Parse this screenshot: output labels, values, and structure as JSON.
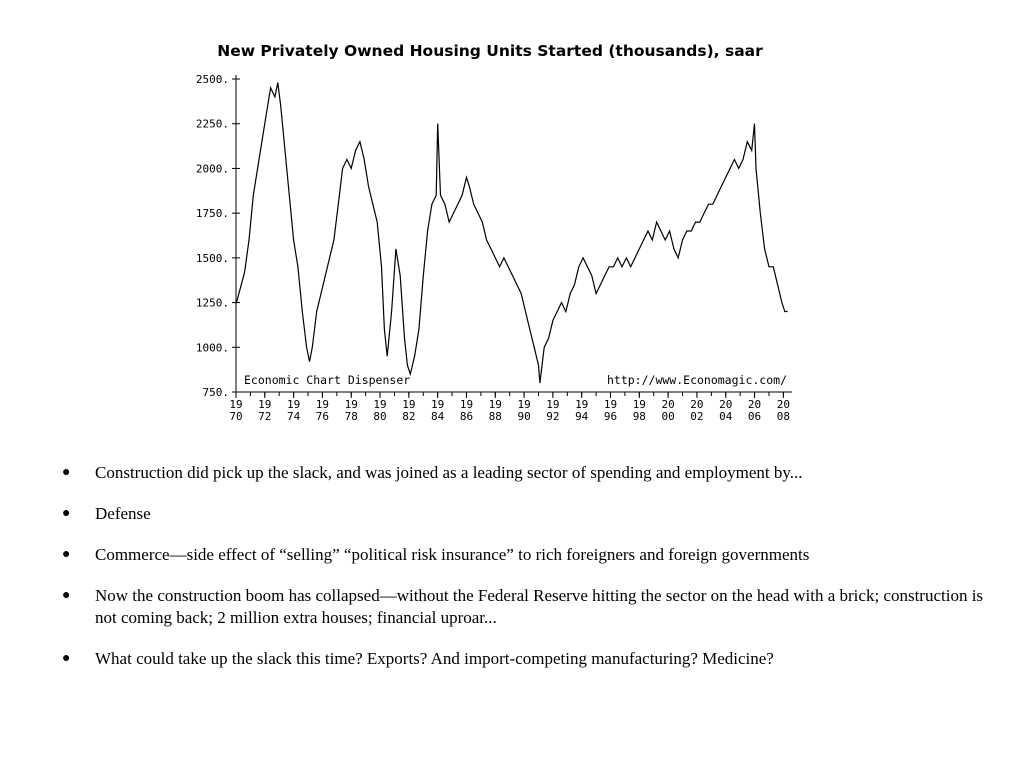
{
  "chart_data": {
    "type": "line",
    "title": "New Privately Owned Housing Units Started (thousands), saar",
    "xlabel": "",
    "ylabel": "",
    "xlim": [
      1970,
      2008.6
    ],
    "ylim": [
      750,
      2500
    ],
    "y_ticks": [
      750,
      1000,
      1250,
      1500,
      1750,
      2000,
      2250,
      2500
    ],
    "y_tick_labels": [
      "750.",
      "1000.",
      "1250.",
      "1500.",
      "1750.",
      "2000.",
      "2250.",
      "2500."
    ],
    "x_ticks": [
      1970,
      1972,
      1974,
      1976,
      1978,
      1980,
      1982,
      1984,
      1986,
      1988,
      1990,
      1992,
      1994,
      1996,
      1998,
      2000,
      2002,
      2004,
      2006,
      2008
    ],
    "x_tick_labels_top": [
      "19",
      "19",
      "19",
      "19",
      "19",
      "19",
      "19",
      "19",
      "19",
      "19",
      "19",
      "19",
      "19",
      "19",
      "19",
      "20",
      "20",
      "20",
      "20",
      "20"
    ],
    "x_tick_labels_bottom": [
      "70",
      "72",
      "74",
      "76",
      "78",
      "80",
      "82",
      "84",
      "86",
      "88",
      "90",
      "92",
      "94",
      "96",
      "98",
      "00",
      "02",
      "04",
      "06",
      "08"
    ],
    "grid": false,
    "annotations": [
      "Economic Chart Dispenser",
      "http://www.Economagic.com/"
    ],
    "series": [
      {
        "x": [
          1970.0,
          1970.3,
          1970.6,
          1970.9,
          1971.2,
          1971.5,
          1971.8,
          1972.1,
          1972.4,
          1972.7,
          1972.9,
          1973.1,
          1973.4,
          1973.7,
          1974.0,
          1974.3,
          1974.6,
          1974.9,
          1975.1,
          1975.3,
          1975.6,
          1975.9,
          1976.2,
          1976.5,
          1976.8,
          1977.1,
          1977.4,
          1977.7,
          1978.0,
          1978.3,
          1978.6,
          1978.9,
          1979.2,
          1979.5,
          1979.8,
          1980.1,
          1980.3,
          1980.5,
          1980.8,
          1981.1,
          1981.4,
          1981.7,
          1981.9,
          1982.1,
          1982.4,
          1982.7,
          1983.0,
          1983.3,
          1983.6,
          1983.9,
          1984.0,
          1984.2,
          1984.5,
          1984.8,
          1985.1,
          1985.4,
          1985.7,
          1986.0,
          1986.2,
          1986.5,
          1986.8,
          1987.1,
          1987.4,
          1987.7,
          1988.0,
          1988.3,
          1988.6,
          1988.9,
          1989.2,
          1989.5,
          1989.8,
          1990.1,
          1990.4,
          1990.7,
          1991.0,
          1991.1,
          1991.4,
          1991.7,
          1992.0,
          1992.3,
          1992.6,
          1992.9,
          1993.2,
          1993.5,
          1993.8,
          1994.1,
          1994.4,
          1994.7,
          1995.0,
          1995.3,
          1995.6,
          1995.9,
          1996.2,
          1996.5,
          1996.8,
          1997.1,
          1997.4,
          1997.7,
          1998.0,
          1998.3,
          1998.6,
          1998.9,
          1999.2,
          1999.5,
          1999.8,
          2000.1,
          2000.4,
          2000.7,
          2001.0,
          2001.3,
          2001.6,
          2001.9,
          2002.2,
          2002.5,
          2002.8,
          2003.1,
          2003.4,
          2003.7,
          2004.0,
          2004.3,
          2004.6,
          2004.9,
          2005.2,
          2005.5,
          2005.8,
          2006.0,
          2006.1,
          2006.4,
          2006.7,
          2007.0,
          2007.3,
          2007.6,
          2007.9,
          2008.1,
          2008.3
        ],
        "values": [
          1240,
          1330,
          1420,
          1600,
          1850,
          2000,
          2150,
          2300,
          2450,
          2400,
          2480,
          2350,
          2100,
          1850,
          1600,
          1450,
          1200,
          1000,
          920,
          1000,
          1200,
          1300,
          1400,
          1500,
          1600,
          1800,
          2000,
          2050,
          2000,
          2100,
          2150,
          2050,
          1900,
          1800,
          1700,
          1450,
          1100,
          950,
          1200,
          1550,
          1400,
          1050,
          900,
          850,
          950,
          1100,
          1400,
          1650,
          1800,
          1850,
          2250,
          1850,
          1800,
          1700,
          1750,
          1800,
          1850,
          1950,
          1900,
          1800,
          1750,
          1700,
          1600,
          1550,
          1500,
          1450,
          1500,
          1450,
          1400,
          1350,
          1300,
          1200,
          1100,
          1000,
          900,
          800,
          1000,
          1050,
          1150,
          1200,
          1250,
          1200,
          1300,
          1350,
          1450,
          1500,
          1450,
          1400,
          1300,
          1350,
          1400,
          1450,
          1450,
          1500,
          1450,
          1500,
          1450,
          1500,
          1550,
          1600,
          1650,
          1600,
          1700,
          1650,
          1600,
          1650,
          1550,
          1500,
          1600,
          1650,
          1650,
          1700,
          1700,
          1750,
          1800,
          1800,
          1850,
          1900,
          1950,
          2000,
          2050,
          2000,
          2050,
          2150,
          2100,
          2250,
          2000,
          1750,
          1550,
          1450,
          1450,
          1350,
          1250,
          1200,
          1200
        ]
      }
    ]
  },
  "bullets": [
    "Construction did pick up the slack, and was joined as a leading sector of spending and employment by...",
    "Defense",
    "Commerce—side effect of “selling” “political risk insurance” to rich foreigners and foreign governments",
    "Now the construction boom has collapsed—without the Federal Reserve hitting the sector on the head with a brick; construction is not coming back; 2 million extra houses; financial uproar...",
    "What could take up the slack this time? Exports? And import-competing manufacturing? Medicine?"
  ],
  "bullet_marker": "●"
}
